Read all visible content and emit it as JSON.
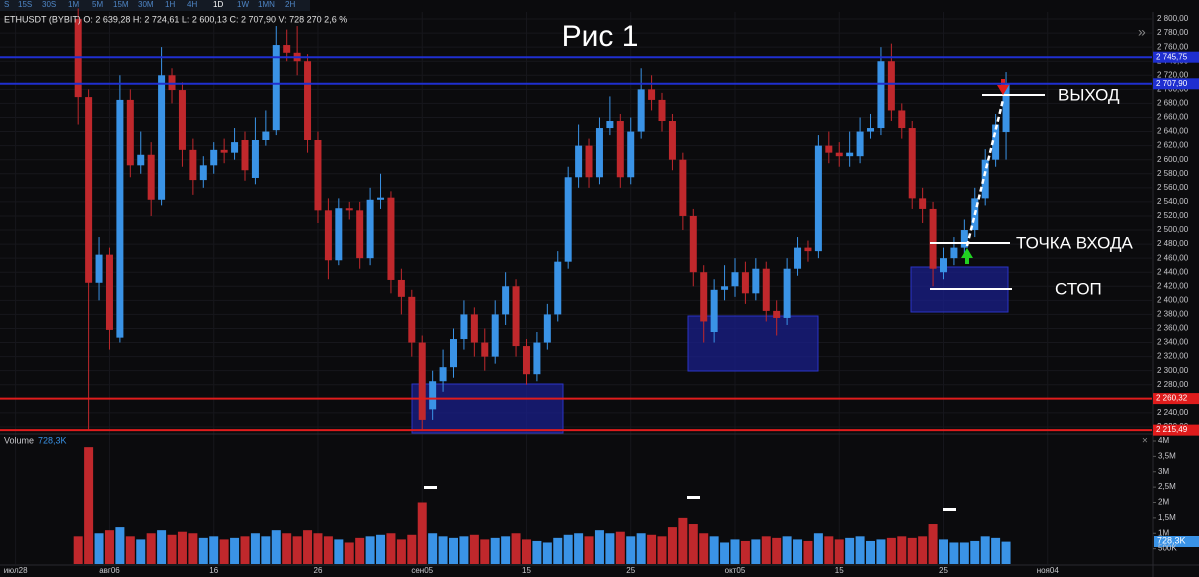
{
  "toolbar": [
    "S",
    "15S",
    "30S",
    "1M",
    "5M",
    "15M",
    "30M",
    "1H",
    "4H",
    "1D",
    "1W",
    "1MN",
    "2H"
  ],
  "chart_data": {
    "type": "candlestick",
    "title": "Рис 1",
    "header": "ETHUSDT (BYBIT) O: 2 639,28 H: 2 724,61 L: 2 600,13 C: 2 707,90 V: 728 270 2,6 %",
    "annotations": {
      "exit": "ВЫХОД",
      "entry": "ТОЧКА ВХОДА",
      "stop": "СТОП"
    },
    "up_color": "#3a93e6",
    "down_color": "#c0282c",
    "open": [
      2800,
      2689,
      2425,
      2465,
      2347,
      2685,
      2592,
      2607,
      2543,
      2720,
      2699,
      2614,
      2571,
      2592,
      2614,
      2610,
      2628,
      2574,
      2628,
      2642,
      2763,
      2752,
      2740,
      2628,
      2528,
      2457,
      2531,
      2528,
      2460,
      2543,
      2546,
      2429,
      2405,
      2340,
      2245,
      2285,
      2305,
      2345,
      2380,
      2340,
      2320,
      2380,
      2420,
      2335,
      2295,
      2340,
      2380,
      2455,
      2575,
      2620,
      2575,
      2645,
      2655,
      2575,
      2640,
      2700,
      2685,
      2655,
      2600,
      2520,
      2440,
      2355,
      2415,
      2420,
      2440,
      2410,
      2445,
      2385,
      2375,
      2445,
      2475,
      2470,
      2620,
      2610,
      2605,
      2605,
      2640,
      2645,
      2740,
      2670,
      2645,
      2545,
      2530,
      2440,
      2460,
      2475,
      2500,
      2545,
      2600,
      2639.28
    ],
    "high": [
      2815,
      2700,
      2490,
      2475,
      2720,
      2700,
      2640,
      2625,
      2760,
      2730,
      2710,
      2630,
      2605,
      2625,
      2630,
      2645,
      2640,
      2660,
      2670,
      2790,
      2785,
      2790,
      2750,
      2640,
      2545,
      2545,
      2540,
      2540,
      2560,
      2580,
      2555,
      2445,
      2415,
      2350,
      2300,
      2330,
      2360,
      2400,
      2390,
      2360,
      2400,
      2440,
      2430,
      2345,
      2355,
      2395,
      2470,
      2590,
      2650,
      2630,
      2660,
      2690,
      2665,
      2660,
      2730,
      2720,
      2695,
      2665,
      2610,
      2530,
      2450,
      2430,
      2450,
      2460,
      2455,
      2460,
      2455,
      2400,
      2460,
      2490,
      2485,
      2635,
      2640,
      2625,
      2640,
      2660,
      2665,
      2760,
      2765,
      2680,
      2655,
      2560,
      2540,
      2475,
      2490,
      2515,
      2560,
      2615,
      2665,
      2724.61
    ],
    "low": [
      2650,
      2216,
      2400,
      2330,
      2340,
      2575,
      2580,
      2520,
      2535,
      2680,
      2590,
      2550,
      2560,
      2580,
      2595,
      2600,
      2570,
      2565,
      2620,
      2635,
      2740,
      2720,
      2610,
      2510,
      2430,
      2450,
      2515,
      2445,
      2450,
      2530,
      2410,
      2380,
      2320,
      2216,
      2230,
      2270,
      2290,
      2330,
      2320,
      2300,
      2310,
      2365,
      2320,
      2280,
      2285,
      2330,
      2370,
      2445,
      2560,
      2560,
      2565,
      2635,
      2560,
      2565,
      2630,
      2670,
      2640,
      2585,
      2500,
      2420,
      2340,
      2340,
      2400,
      2405,
      2395,
      2400,
      2370,
      2350,
      2365,
      2435,
      2455,
      2460,
      2595,
      2590,
      2590,
      2595,
      2630,
      2635,
      2655,
      2630,
      2530,
      2510,
      2420,
      2430,
      2450,
      2465,
      2490,
      2535,
      2590,
      2600.13
    ],
    "close": [
      2689,
      2425,
      2465,
      2358,
      2685,
      2592,
      2607,
      2543,
      2720,
      2699,
      2614,
      2571,
      2592,
      2614,
      2610,
      2625,
      2585,
      2628,
      2640,
      2763,
      2752,
      2740,
      2628,
      2528,
      2457,
      2531,
      2528,
      2460,
      2543,
      2546,
      2429,
      2405,
      2340,
      2230,
      2285,
      2305,
      2345,
      2380,
      2340,
      2320,
      2380,
      2420,
      2335,
      2295,
      2340,
      2380,
      2455,
      2575,
      2620,
      2575,
      2645,
      2655,
      2575,
      2640,
      2700,
      2685,
      2655,
      2600,
      2520,
      2440,
      2370,
      2415,
      2420,
      2440,
      2410,
      2445,
      2385,
      2375,
      2445,
      2475,
      2470,
      2620,
      2610,
      2605,
      2610,
      2640,
      2645,
      2740,
      2670,
      2645,
      2545,
      2530,
      2445,
      2460,
      2475,
      2500,
      2545,
      2600,
      2650,
      2707.9
    ],
    "volume": [
      0.9,
      3.8,
      1.0,
      1.1,
      1.2,
      0.9,
      0.8,
      1.0,
      1.1,
      0.95,
      1.05,
      1.0,
      0.85,
      0.9,
      0.8,
      0.85,
      0.9,
      1.0,
      0.9,
      1.1,
      1.0,
      0.9,
      1.1,
      1.0,
      0.9,
      0.8,
      0.7,
      0.85,
      0.9,
      0.95,
      1.0,
      0.8,
      0.95,
      2.0,
      1.0,
      0.9,
      0.85,
      0.9,
      0.95,
      0.8,
      0.85,
      0.9,
      1.0,
      0.8,
      0.75,
      0.7,
      0.85,
      0.95,
      1.0,
      0.9,
      1.1,
      1.0,
      1.05,
      0.9,
      1.0,
      0.95,
      0.9,
      1.2,
      1.5,
      1.3,
      1.0,
      0.9,
      0.7,
      0.8,
      0.75,
      0.8,
      0.9,
      0.85,
      0.9,
      0.8,
      0.75,
      1.0,
      0.9,
      0.8,
      0.85,
      0.9,
      0.75,
      0.8,
      0.85,
      0.9,
      0.85,
      0.9,
      1.3,
      0.8,
      0.7,
      0.7,
      0.75,
      0.9,
      0.85,
      0.7283
    ],
    "volume_title": "Volume",
    "volume_label": "728,3K",
    "xlim": [
      -7.5,
      103
    ],
    "xticks": [
      {
        "value": -6,
        "label": "июл28"
      },
      {
        "value": 3,
        "label": "авг06"
      },
      {
        "value": 13,
        "label": "16"
      },
      {
        "value": 23,
        "label": "26"
      },
      {
        "value": 33,
        "label": "сен05"
      },
      {
        "value": 43,
        "label": "15"
      },
      {
        "value": 53,
        "label": "25"
      },
      {
        "value": 63,
        "label": "окт05"
      },
      {
        "value": 73,
        "label": "15"
      },
      {
        "value": 83,
        "label": "25"
      },
      {
        "value": 93,
        "label": "ноя04"
      }
    ],
    "ylim": [
      2211.4,
      2810
    ],
    "yticks": [
      {
        "value": 2800,
        "label": "2 800,00"
      },
      {
        "value": 2780,
        "label": "2 780,00"
      },
      {
        "value": 2760,
        "label": "2 760,00"
      },
      {
        "value": 2740,
        "label": "2 740,00"
      },
      {
        "value": 2720,
        "label": "2 720,00"
      },
      {
        "value": 2700,
        "label": "2 700,00"
      },
      {
        "value": 2680,
        "label": "2 680,00"
      },
      {
        "value": 2660,
        "label": "2 660,00"
      },
      {
        "value": 2640,
        "label": "2 640,00"
      },
      {
        "value": 2620,
        "label": "2 620,00"
      },
      {
        "value": 2600,
        "label": "2 600,00"
      },
      {
        "value": 2580,
        "label": "2 580,00"
      },
      {
        "value": 2560,
        "label": "2 560,00"
      },
      {
        "value": 2540,
        "label": "2 540,00"
      },
      {
        "value": 2520,
        "label": "2 520,00"
      },
      {
        "value": 2500,
        "label": "2 500,00"
      },
      {
        "value": 2480,
        "label": "2 480,00"
      },
      {
        "value": 2460,
        "label": "2 460,00"
      },
      {
        "value": 2440,
        "label": "2 440,00"
      },
      {
        "value": 2420,
        "label": "2 420,00"
      },
      {
        "value": 2400,
        "label": "2 400,00"
      },
      {
        "value": 2380,
        "label": "2 380,00"
      },
      {
        "value": 2360,
        "label": "2 360,00"
      },
      {
        "value": 2340,
        "label": "2 340,00"
      },
      {
        "value": 2320,
        "label": "2 320,00"
      },
      {
        "value": 2300,
        "label": "2 300,00"
      },
      {
        "value": 2280,
        "label": "2 280,00"
      },
      {
        "value": 2260,
        "label": "2 260,00"
      },
      {
        "value": 2240,
        "label": "2 240,00"
      },
      {
        "value": 2220,
        "label": "2 220,00"
      }
    ],
    "levels": [
      {
        "value": 2745.75,
        "label": "2 745,75",
        "color": "#1f2fd0"
      },
      {
        "value": 2707.9,
        "label": "2 707,90",
        "color": "#1f2fd0"
      },
      {
        "value": 2260.32,
        "label": "2 260,32",
        "color": "#e01c1c"
      },
      {
        "value": 2215.49,
        "label": "2 215,49",
        "color": "#e01c1c"
      }
    ],
    "vol_ylim": [
      0,
      4.13
    ],
    "vol_yticks": [
      {
        "value": 4,
        "label": "4M"
      },
      {
        "value": 3.5,
        "label": "3,5M"
      },
      {
        "value": 3,
        "label": "3M"
      },
      {
        "value": 2.5,
        "label": "2,5M"
      },
      {
        "value": 2,
        "label": "2M"
      },
      {
        "value": 1.5,
        "label": "1,5M"
      },
      {
        "value": 1,
        "label": "1M"
      },
      {
        "value": 0.5,
        "label": "500K"
      }
    ],
    "grid": true
  }
}
